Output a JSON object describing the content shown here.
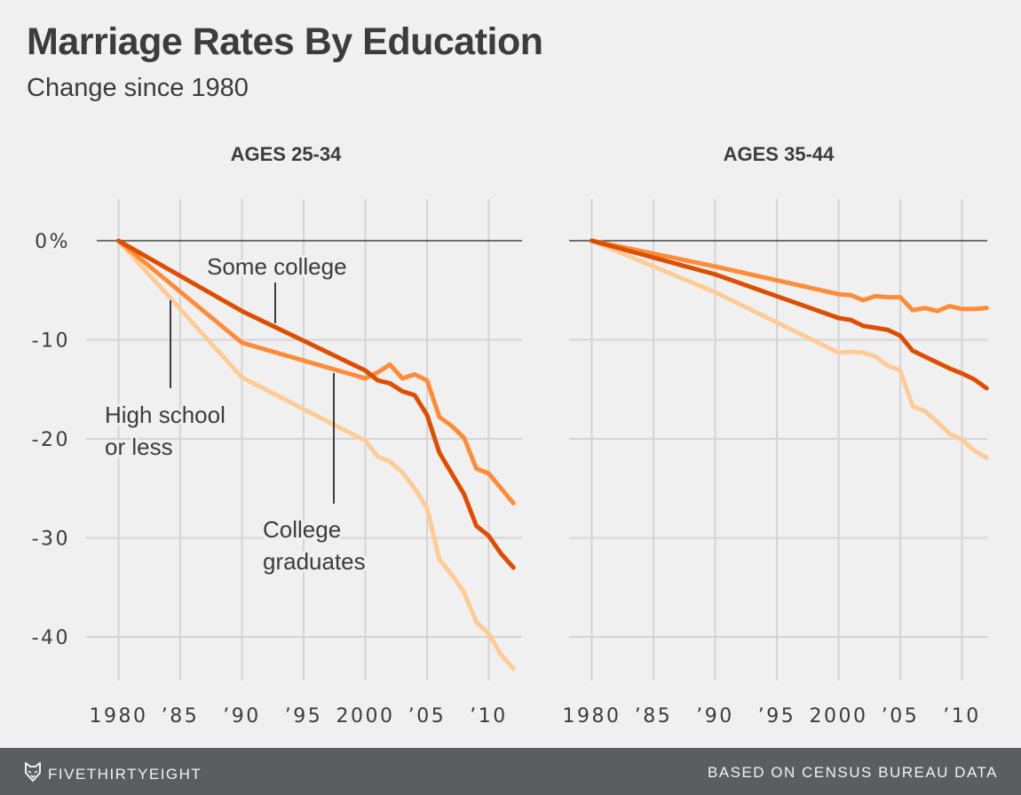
{
  "header": {
    "title": "Marriage Rates By Education",
    "subtitle": "Change since 1980"
  },
  "footer": {
    "brand": "FIVETHIRTYEIGHT",
    "brand_icon": "fox-logo-icon",
    "source": "BASED ON CENSUS BUREAU DATA"
  },
  "colors": {
    "some_college": "#dc4e00",
    "college_graduates": "#ff8c3a",
    "high_school_or_less": "#ffcb98",
    "zero_line": "#444444",
    "grid": "#d4d4d4",
    "footer_bg": "#5b5e5f"
  },
  "chart_data": [
    {
      "type": "line",
      "title": "AGES 25-34",
      "xlabel": "",
      "ylabel": "",
      "x_tick_values": [
        1980,
        1985,
        1990,
        1995,
        2000,
        2005,
        2010
      ],
      "x_tick_labels": [
        "1980",
        "’85",
        "’90",
        "’95",
        "2000",
        "’05",
        "’10"
      ],
      "y_tick_values": [
        0,
        -10,
        -20,
        -30,
        -40
      ],
      "y_tick_labels": [
        "0%",
        "-10",
        "-20",
        "-30",
        "-40"
      ],
      "xlim": [
        1977.4,
        2013.1
      ],
      "ylim": [
        -44.5,
        4.5
      ],
      "grid": true,
      "annotations": [
        {
          "series": "Some college",
          "lines": [
            "Some college"
          ]
        },
        {
          "series": "High school or less",
          "lines": [
            "High school",
            "or less"
          ]
        },
        {
          "series": "College graduates",
          "lines": [
            "College",
            "graduates"
          ]
        }
      ],
      "series": [
        {
          "name": "Some college",
          "color_key": "some_college",
          "points": [
            [
              1980,
              0
            ],
            [
              1990,
              -7.1
            ],
            [
              2000,
              -13.1
            ],
            [
              2001,
              -14.1
            ],
            [
              2002,
              -14.4
            ],
            [
              2003,
              -15.2
            ],
            [
              2004,
              -15.6
            ],
            [
              2005,
              -17.6
            ],
            [
              2006,
              -21.4
            ],
            [
              2007,
              -23.5
            ],
            [
              2008,
              -25.6
            ],
            [
              2009,
              -28.8
            ],
            [
              2010,
              -29.8
            ],
            [
              2011,
              -31.6
            ],
            [
              2012,
              -33.0
            ]
          ]
        },
        {
          "name": "College graduates",
          "color_key": "college_graduates",
          "points": [
            [
              1980,
              0
            ],
            [
              1990,
              -10.3
            ],
            [
              2000,
              -13.9
            ],
            [
              2001,
              -13.3
            ],
            [
              2002,
              -12.5
            ],
            [
              2003,
              -13.9
            ],
            [
              2004,
              -13.5
            ],
            [
              2005,
              -14.1
            ],
            [
              2006,
              -17.8
            ],
            [
              2007,
              -18.7
            ],
            [
              2008,
              -19.9
            ],
            [
              2009,
              -23.0
            ],
            [
              2010,
              -23.5
            ],
            [
              2011,
              -25.0
            ],
            [
              2012,
              -26.5
            ]
          ]
        },
        {
          "name": "High school or less",
          "color_key": "high_school_or_less",
          "points": [
            [
              1980,
              0
            ],
            [
              1990,
              -13.8
            ],
            [
              2000,
              -20.2
            ],
            [
              2001,
              -21.8
            ],
            [
              2002,
              -22.3
            ],
            [
              2003,
              -23.4
            ],
            [
              2004,
              -25.0
            ],
            [
              2005,
              -27.0
            ],
            [
              2006,
              -32.2
            ],
            [
              2007,
              -33.7
            ],
            [
              2008,
              -35.5
            ],
            [
              2009,
              -38.5
            ],
            [
              2010,
              -39.7
            ],
            [
              2011,
              -41.8
            ],
            [
              2012,
              -43.2
            ]
          ]
        }
      ]
    },
    {
      "type": "line",
      "title": "AGES 35-44",
      "xlabel": "",
      "ylabel": "",
      "x_tick_values": [
        1980,
        1985,
        1990,
        1995,
        2000,
        2005,
        2010
      ],
      "x_tick_labels": [
        "1980",
        "’85",
        "’90",
        "’95",
        "2000",
        "’05",
        "’10"
      ],
      "y_tick_values": [
        0,
        -10,
        -20,
        -30,
        -40
      ],
      "y_tick_labels": [],
      "xlim": [
        1977.4,
        2013.1
      ],
      "ylim": [
        -44.5,
        4.5
      ],
      "grid": true,
      "annotations": [],
      "series": [
        {
          "name": "Some college",
          "color_key": "some_college",
          "points": [
            [
              1980,
              0
            ],
            [
              1990,
              -3.4
            ],
            [
              2000,
              -7.8
            ],
            [
              2001,
              -8.0
            ],
            [
              2002,
              -8.6
            ],
            [
              2003,
              -8.8
            ],
            [
              2004,
              -9.0
            ],
            [
              2005,
              -9.6
            ],
            [
              2006,
              -11.1
            ],
            [
              2007,
              -11.7
            ],
            [
              2008,
              -12.3
            ],
            [
              2009,
              -12.9
            ],
            [
              2010,
              -13.4
            ],
            [
              2011,
              -14.0
            ],
            [
              2012,
              -14.9
            ]
          ]
        },
        {
          "name": "College graduates",
          "color_key": "college_graduates",
          "points": [
            [
              1980,
              0
            ],
            [
              1990,
              -2.6
            ],
            [
              2000,
              -5.4
            ],
            [
              2001,
              -5.5
            ],
            [
              2002,
              -6.0
            ],
            [
              2003,
              -5.6
            ],
            [
              2004,
              -5.7
            ],
            [
              2005,
              -5.7
            ],
            [
              2006,
              -7.0
            ],
            [
              2007,
              -6.8
            ],
            [
              2008,
              -7.1
            ],
            [
              2009,
              -6.6
            ],
            [
              2010,
              -6.9
            ],
            [
              2011,
              -6.9
            ],
            [
              2012,
              -6.8
            ]
          ]
        },
        {
          "name": "High school or less",
          "color_key": "high_school_or_less",
          "points": [
            [
              1980,
              0
            ],
            [
              1990,
              -5.2
            ],
            [
              2000,
              -11.3
            ],
            [
              2001,
              -11.2
            ],
            [
              2002,
              -11.3
            ],
            [
              2003,
              -11.7
            ],
            [
              2004,
              -12.6
            ],
            [
              2005,
              -13.1
            ],
            [
              2006,
              -16.7
            ],
            [
              2007,
              -17.2
            ],
            [
              2008,
              -18.3
            ],
            [
              2009,
              -19.5
            ],
            [
              2010,
              -20.1
            ],
            [
              2011,
              -21.2
            ],
            [
              2012,
              -21.9
            ]
          ]
        }
      ]
    }
  ]
}
